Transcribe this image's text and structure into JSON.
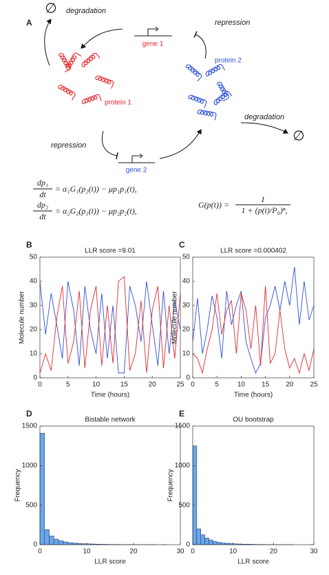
{
  "diagram": {
    "panel": "A",
    "empty_left": "∅",
    "degradation_left": "degradation",
    "gene1": "gene 1",
    "repression_top": "repression",
    "protein2": "protein 2",
    "protein1": "protein 1",
    "degradation_right": "degradation",
    "empty_right": "∅",
    "repression_bottom": "repression",
    "gene2": "gene 2"
  },
  "equations": {
    "eq1_num": "dp₁",
    "eq1_den": "dt",
    "eq1_rhs": "= α₁G₁(p₂(t)) − μp₁p₁(t),",
    "eq2_num": "dp₂",
    "eq2_den": "dt",
    "eq2_rhs": "= α₂G₂(p₁(t)) − μp₂p₂(t),",
    "g_lhs": "G(p(t)) =",
    "g_num": "1",
    "g_den": "1 + (p(t)/P₀)ⁿ,"
  },
  "chart_data": [
    {
      "type": "line",
      "panel": "B",
      "title": "LLR score =9.01",
      "xlabel": "Time (hours)",
      "ylabel": "Molecule number",
      "x": [
        0,
        1,
        2,
        3,
        4,
        5,
        6,
        7,
        8,
        9,
        10,
        11,
        12,
        13,
        14,
        15,
        16,
        17,
        18,
        19,
        20,
        21,
        22,
        23,
        24,
        25
      ],
      "series": [
        {
          "color": "#2b4fd4",
          "values": [
            40,
            18,
            35,
            22,
            8,
            40,
            28,
            5,
            38,
            20,
            10,
            35,
            8,
            30,
            2,
            2,
            38,
            30,
            15,
            40,
            22,
            5,
            36,
            10,
            32,
            20
          ]
        },
        {
          "color": "#e3262b",
          "values": [
            2,
            10,
            3,
            25,
            38,
            6,
            15,
            36,
            4,
            28,
            38,
            5,
            30,
            6,
            40,
            42,
            3,
            10,
            32,
            2,
            28,
            38,
            4,
            30,
            8,
            35
          ]
        }
      ],
      "xlim": [
        0,
        25
      ],
      "xticks": [
        0,
        5,
        10,
        15,
        20,
        25
      ],
      "ylim": [
        0,
        50
      ],
      "yticks": [
        0,
        10,
        20,
        30,
        40,
        50
      ]
    },
    {
      "type": "line",
      "panel": "C",
      "title": "LLR score =0.000402",
      "xlabel": "Time (hours)",
      "ylabel": "Molecule number",
      "x": [
        0,
        1,
        2,
        3,
        4,
        5,
        6,
        7,
        8,
        9,
        10,
        11,
        12,
        13,
        14,
        15,
        16,
        17,
        18,
        19,
        20,
        21,
        22,
        23,
        24,
        25
      ],
      "series": [
        {
          "color": "#2b4fd4",
          "values": [
            15,
            33,
            10,
            20,
            34,
            25,
            8,
            36,
            22,
            30,
            36,
            15,
            8,
            2,
            6,
            25,
            30,
            38,
            28,
            40,
            30,
            46,
            22,
            40,
            24,
            30
          ]
        },
        {
          "color": "#e3262b",
          "values": [
            10,
            8,
            2,
            12,
            20,
            35,
            18,
            28,
            32,
            10,
            35,
            28,
            12,
            30,
            5,
            38,
            6,
            10,
            28,
            12,
            4,
            8,
            2,
            10,
            3,
            12
          ]
        }
      ],
      "xlim": [
        0,
        25
      ],
      "xticks": [
        0,
        5,
        10,
        15,
        20,
        25
      ],
      "ylim": [
        0,
        50
      ],
      "yticks": [
        0,
        10,
        20,
        30,
        40,
        50
      ]
    },
    {
      "type": "histogram",
      "panel": "D",
      "title": "Bistable network",
      "xlabel": "LLR score",
      "ylabel": "Frequency",
      "color": "#6aa6ea",
      "bins": [
        0,
        1,
        2,
        3,
        4,
        5,
        6,
        7,
        8,
        9,
        10,
        11,
        12,
        13,
        14,
        15,
        16,
        17,
        18,
        19,
        20,
        21,
        22,
        23,
        24,
        25,
        26,
        27,
        28,
        29,
        30
      ],
      "values": [
        1410,
        190,
        110,
        70,
        50,
        35,
        25,
        20,
        15,
        12,
        10,
        8,
        6,
        5,
        4,
        3,
        3,
        2,
        2,
        2,
        1,
        1,
        1,
        1,
        1,
        0,
        1,
        0,
        0,
        0
      ],
      "xlim": [
        0,
        30
      ],
      "xticks": [
        0,
        10,
        20,
        30
      ],
      "ylim": [
        0,
        1500
      ],
      "yticks": [
        0,
        500,
        1000,
        1500
      ]
    },
    {
      "type": "histogram",
      "panel": "E",
      "title": "OU bootstrap",
      "xlabel": "LLR score",
      "ylabel": "Frequency",
      "color": "#6aa6ea",
      "bins": [
        0,
        1,
        2,
        3,
        4,
        5,
        6,
        7,
        8,
        9,
        10,
        11,
        12,
        13,
        14,
        15,
        16,
        17,
        18,
        19,
        20,
        21,
        22,
        23,
        24,
        25,
        26,
        27,
        28,
        29,
        30
      ],
      "values": [
        1250,
        200,
        125,
        85,
        60,
        40,
        30,
        22,
        18,
        14,
        11,
        9,
        7,
        6,
        5,
        4,
        3,
        3,
        2,
        2,
        1,
        1,
        1,
        1,
        1,
        0,
        0,
        0,
        0,
        1
      ],
      "xlim": [
        0,
        30
      ],
      "xticks": [
        0,
        10,
        20,
        30
      ],
      "ylim": [
        0,
        1500
      ],
      "yticks": [
        0,
        500,
        1000,
        1500
      ]
    }
  ]
}
